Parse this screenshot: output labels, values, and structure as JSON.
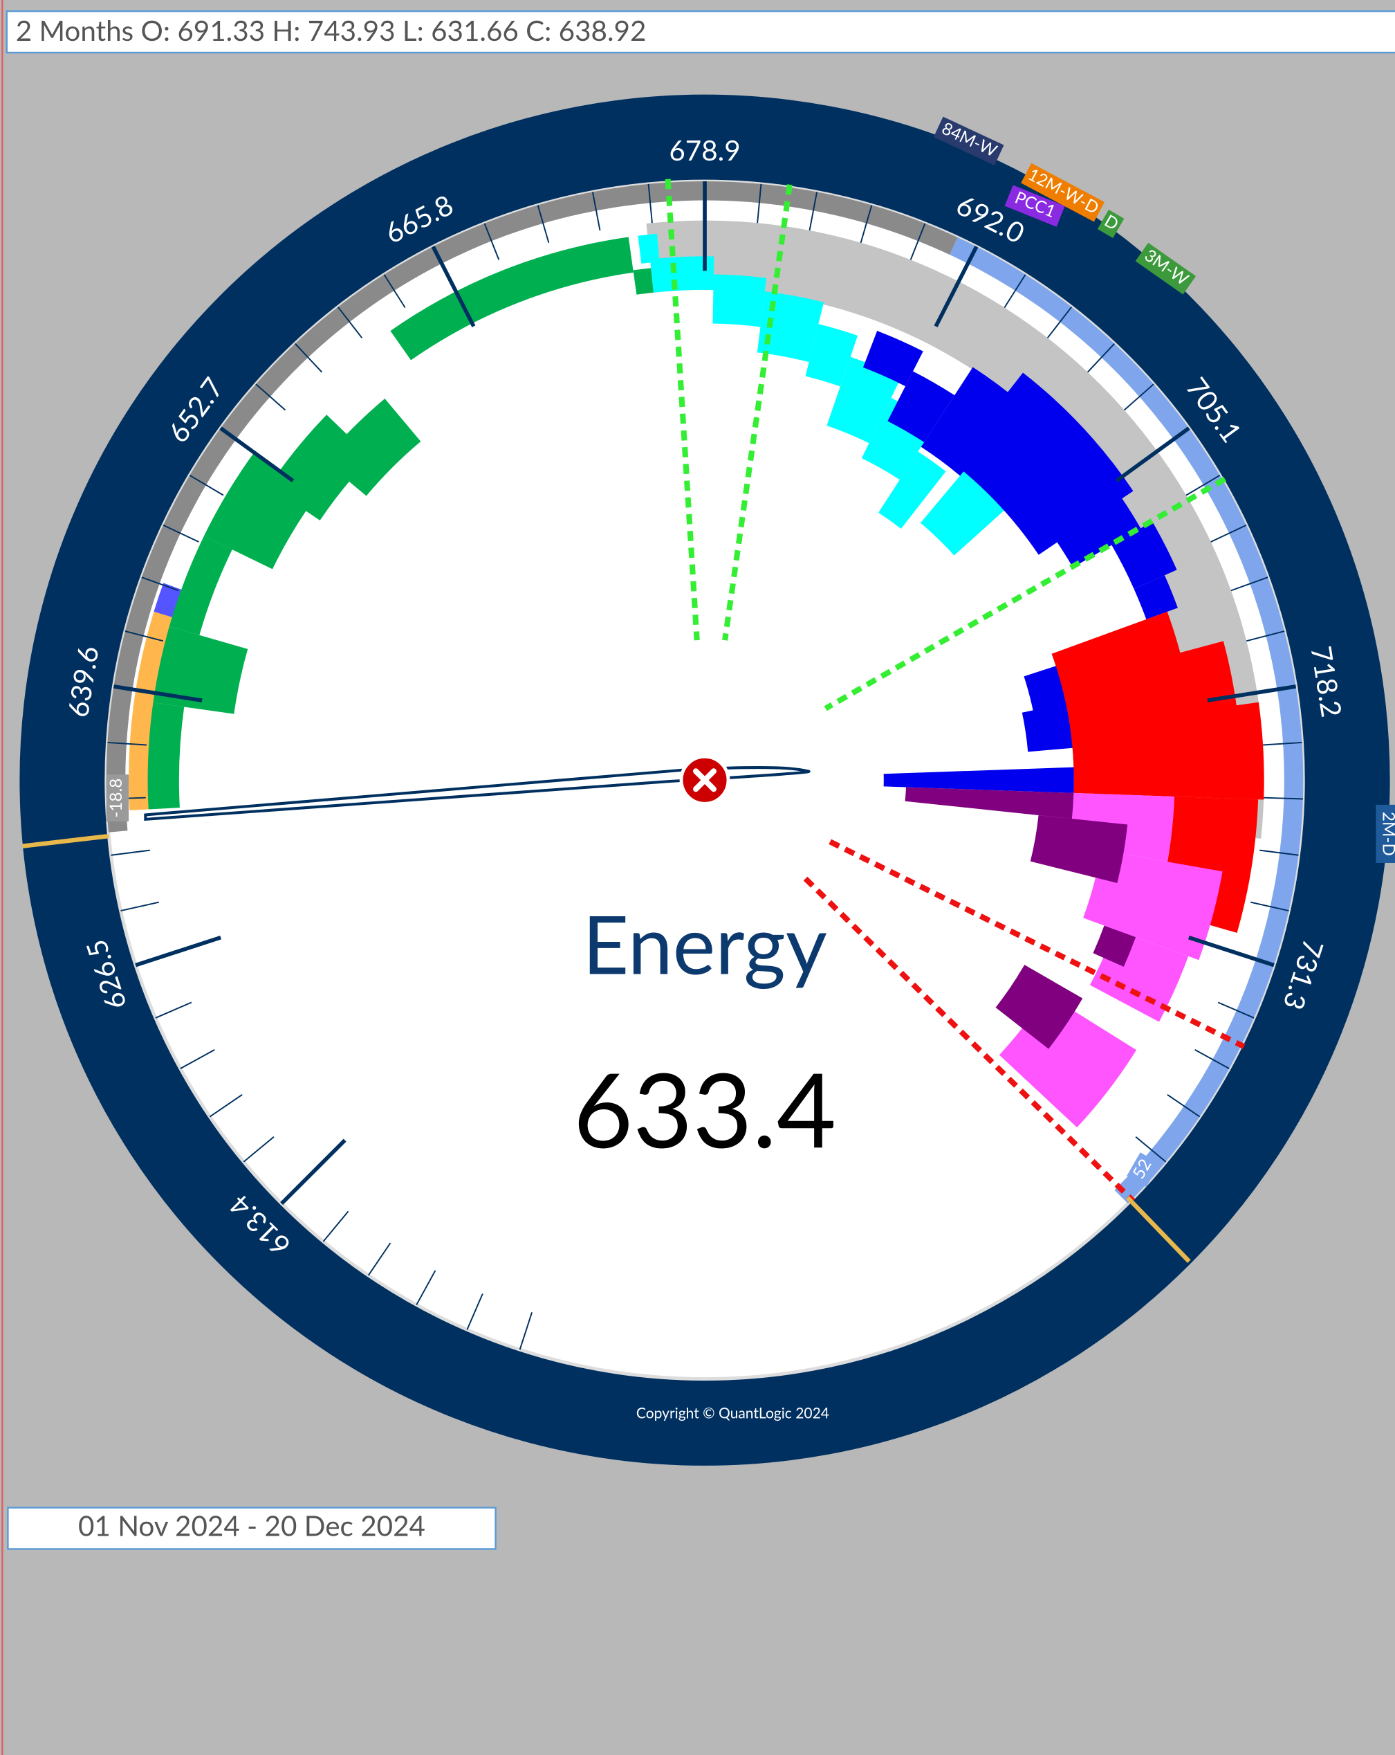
{
  "header": {
    "text": "2 Months O: 691.33 H: 743.93 L: 631.66 C: 638.92"
  },
  "gauge": {
    "scale_ticks": [
      613.4,
      626.5,
      639.6,
      652.7,
      665.8,
      678.9,
      {
        "value": 692,
        "label": "692.0"
      },
      705.1,
      718.2,
      731.3
    ],
    "badges": [
      "84M-W",
      "12M-W-D",
      "PCC1",
      "D",
      "3M-W",
      "2M-D",
      "-18.8",
      "52"
    ],
    "center_title": "Energy",
    "center_value": "633.4",
    "copyright": "Copyright © QuantLogic 2024"
  },
  "footer": {
    "date_range": "01 Nov 2024 - 20 Dec 2024"
  }
}
